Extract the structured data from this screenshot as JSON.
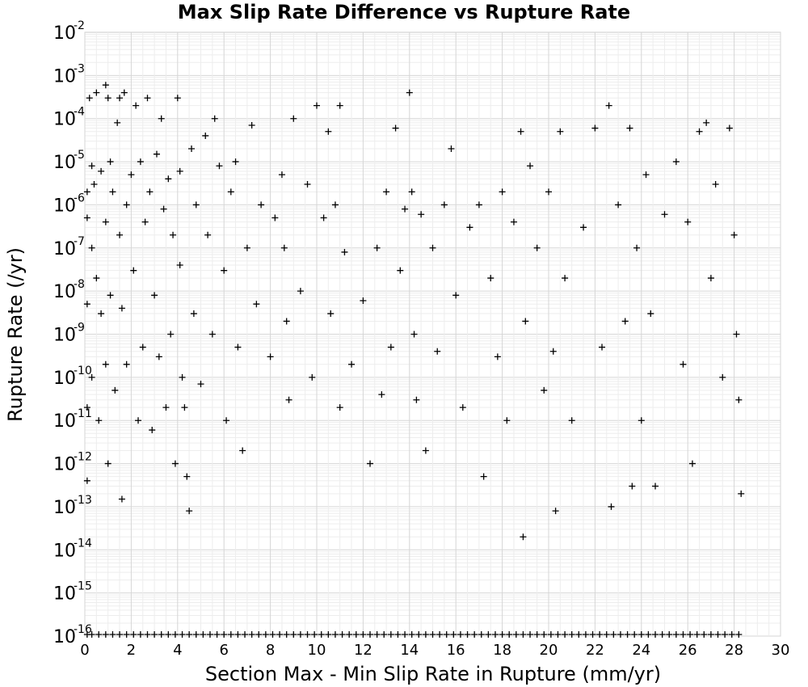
{
  "chart_data": {
    "type": "scatter",
    "title": "Max Slip Rate Difference vs Rupture Rate",
    "xlabel": "Section Max - Min Slip Rate in Rupture (mm/yr)",
    "ylabel": "Rupture Rate (/yr)",
    "xlim": [
      0,
      30
    ],
    "ylim": [
      1e-16,
      0.01
    ],
    "y_scale": "log",
    "grid": true,
    "marker": "+",
    "marker_color": "#000000",
    "x_ticks": [
      "0",
      "2",
      "4",
      "6",
      "8",
      "10",
      "12",
      "14",
      "16",
      "18",
      "20",
      "22",
      "24",
      "26",
      "28",
      "30"
    ],
    "y_ticks": [
      {
        "base": "10",
        "exp": "-2",
        "value": 0.01
      },
      {
        "base": "10",
        "exp": "-3",
        "value": 0.001
      },
      {
        "base": "10",
        "exp": "-4",
        "value": 0.0001
      },
      {
        "base": "10",
        "exp": "-5",
        "value": 1e-05
      },
      {
        "base": "10",
        "exp": "-6",
        "value": 1e-06
      },
      {
        "base": "10",
        "exp": "-7",
        "value": 1e-07
      },
      {
        "base": "10",
        "exp": "-8",
        "value": 1e-08
      },
      {
        "base": "10",
        "exp": "-9",
        "value": 1e-09
      },
      {
        "base": "10",
        "exp": "-10",
        "value": 1e-10
      },
      {
        "base": "10",
        "exp": "-11",
        "value": 1e-11
      },
      {
        "base": "10",
        "exp": "-12",
        "value": 1e-12
      },
      {
        "base": "10",
        "exp": "-13",
        "value": 1e-13
      },
      {
        "base": "10",
        "exp": "-14",
        "value": 1e-14
      },
      {
        "base": "10",
        "exp": "-15",
        "value": 1e-15
      },
      {
        "base": "10",
        "exp": "-16",
        "value": 1e-16
      }
    ],
    "series": [
      {
        "values": [
          [
            0.1,
            2e-06
          ],
          [
            0.1,
            5e-07
          ],
          [
            0.1,
            5e-09
          ],
          [
            0.1,
            2e-11
          ],
          [
            0.1,
            4e-13
          ],
          [
            0.2,
            0.0003
          ],
          [
            0.3,
            8e-06
          ],
          [
            0.3,
            1e-07
          ],
          [
            0.3,
            1e-10
          ],
          [
            0.4,
            3e-06
          ],
          [
            0.5,
            0.0004
          ],
          [
            0.5,
            2e-08
          ],
          [
            0.6,
            1e-11
          ],
          [
            0.7,
            6e-06
          ],
          [
            0.7,
            3e-09
          ],
          [
            0.9,
            0.0006
          ],
          [
            0.9,
            4e-07
          ],
          [
            0.9,
            2e-10
          ],
          [
            1.0,
            0.0003
          ],
          [
            1.0,
            1e-12
          ],
          [
            1.1,
            1e-05
          ],
          [
            1.1,
            8e-09
          ],
          [
            1.2,
            2e-06
          ],
          [
            1.3,
            5e-11
          ],
          [
            1.4,
            8e-05
          ],
          [
            1.5,
            0.0003
          ],
          [
            1.5,
            2e-07
          ],
          [
            1.6,
            4e-09
          ],
          [
            1.6,
            1.5e-13
          ],
          [
            1.7,
            0.0004
          ],
          [
            1.8,
            1e-06
          ],
          [
            1.8,
            2e-10
          ],
          [
            2.0,
            5e-06
          ],
          [
            2.1,
            3e-08
          ],
          [
            2.2,
            0.0002
          ],
          [
            2.3,
            1e-11
          ],
          [
            2.4,
            1e-05
          ],
          [
            2.5,
            5e-10
          ],
          [
            2.6,
            4e-07
          ],
          [
            2.7,
            0.0003
          ],
          [
            2.8,
            2e-06
          ],
          [
            2.9,
            6e-12
          ],
          [
            3.0,
            8e-09
          ],
          [
            3.1,
            1.5e-05
          ],
          [
            3.2,
            3e-10
          ],
          [
            3.3,
            0.0001
          ],
          [
            3.4,
            8e-07
          ],
          [
            3.5,
            2e-11
          ],
          [
            3.6,
            4e-06
          ],
          [
            3.7,
            1e-09
          ],
          [
            3.8,
            2e-07
          ],
          [
            3.9,
            1e-12
          ],
          [
            4.0,
            0.0003
          ],
          [
            4.1,
            6e-06
          ],
          [
            4.1,
            4e-08
          ],
          [
            4.2,
            1e-10
          ],
          [
            4.3,
            2e-11
          ],
          [
            4.4,
            5e-13
          ],
          [
            4.5,
            8e-14
          ],
          [
            4.6,
            2e-05
          ],
          [
            4.7,
            3e-09
          ],
          [
            4.8,
            1e-06
          ],
          [
            5.0,
            7e-11
          ],
          [
            5.2,
            4e-05
          ],
          [
            5.3,
            2e-07
          ],
          [
            5.5,
            1e-09
          ],
          [
            5.6,
            0.0001
          ],
          [
            5.8,
            8e-06
          ],
          [
            6.0,
            3e-08
          ],
          [
            6.1,
            1e-11
          ],
          [
            6.3,
            2e-06
          ],
          [
            6.5,
            1e-05
          ],
          [
            6.6,
            5e-10
          ],
          [
            6.8,
            2e-12
          ],
          [
            7.0,
            1e-07
          ],
          [
            7.2,
            7e-05
          ],
          [
            7.4,
            5e-09
          ],
          [
            7.6,
            1e-06
          ],
          [
            8.0,
            3e-10
          ],
          [
            8.2,
            5e-07
          ],
          [
            8.5,
            5e-06
          ],
          [
            8.6,
            1e-07
          ],
          [
            8.7,
            2e-09
          ],
          [
            8.8,
            3e-11
          ],
          [
            9.0,
            0.0001
          ],
          [
            9.3,
            1e-08
          ],
          [
            9.6,
            3e-06
          ],
          [
            9.8,
            1e-10
          ],
          [
            10.0,
            0.0002
          ],
          [
            10.3,
            5e-07
          ],
          [
            10.5,
            5e-05
          ],
          [
            10.6,
            3e-09
          ],
          [
            10.8,
            1e-06
          ],
          [
            11.0,
            0.0002
          ],
          [
            11.0,
            2e-11
          ],
          [
            11.2,
            8e-08
          ],
          [
            11.5,
            2e-10
          ],
          [
            12.0,
            6e-09
          ],
          [
            12.3,
            1e-12
          ],
          [
            12.6,
            1e-07
          ],
          [
            12.8,
            4e-11
          ],
          [
            13.0,
            2e-06
          ],
          [
            13.2,
            5e-10
          ],
          [
            13.4,
            6e-05
          ],
          [
            13.6,
            3e-08
          ],
          [
            13.8,
            8e-07
          ],
          [
            14.0,
            0.0004
          ],
          [
            14.1,
            2e-06
          ],
          [
            14.2,
            1e-09
          ],
          [
            14.3,
            3e-11
          ],
          [
            14.5,
            6e-07
          ],
          [
            14.7,
            2e-12
          ],
          [
            15.0,
            1e-07
          ],
          [
            15.2,
            4e-10
          ],
          [
            15.5,
            1e-06
          ],
          [
            15.8,
            2e-05
          ],
          [
            16.0,
            8e-09
          ],
          [
            16.3,
            2e-11
          ],
          [
            16.6,
            3e-07
          ],
          [
            17.0,
            1e-06
          ],
          [
            17.2,
            5e-13
          ],
          [
            17.5,
            2e-08
          ],
          [
            17.8,
            3e-10
          ],
          [
            18.0,
            2e-06
          ],
          [
            18.2,
            1e-11
          ],
          [
            18.5,
            4e-07
          ],
          [
            18.8,
            5e-05
          ],
          [
            18.9,
            2e-14
          ],
          [
            19.0,
            2e-09
          ],
          [
            19.2,
            8e-06
          ],
          [
            19.5,
            1e-07
          ],
          [
            19.8,
            5e-11
          ],
          [
            20.0,
            2e-06
          ],
          [
            20.2,
            4e-10
          ],
          [
            20.3,
            8e-14
          ],
          [
            20.5,
            5e-05
          ],
          [
            20.7,
            2e-08
          ],
          [
            21.0,
            1e-11
          ],
          [
            21.5,
            3e-07
          ],
          [
            22.0,
            6e-05
          ],
          [
            22.3,
            5e-10
          ],
          [
            22.6,
            0.0002
          ],
          [
            22.7,
            1e-13
          ],
          [
            23.0,
            1e-06
          ],
          [
            23.3,
            2e-09
          ],
          [
            23.5,
            6e-05
          ],
          [
            23.6,
            3e-13
          ],
          [
            23.8,
            1e-07
          ],
          [
            24.0,
            1e-11
          ],
          [
            24.2,
            5e-06
          ],
          [
            24.4,
            3e-09
          ],
          [
            24.6,
            3e-13
          ],
          [
            25.0,
            6e-07
          ],
          [
            25.5,
            1e-05
          ],
          [
            25.8,
            2e-10
          ],
          [
            26.0,
            4e-07
          ],
          [
            26.2,
            1e-12
          ],
          [
            26.5,
            5e-05
          ],
          [
            26.8,
            8e-05
          ],
          [
            27.0,
            2e-08
          ],
          [
            27.2,
            3e-06
          ],
          [
            27.5,
            1e-10
          ],
          [
            27.8,
            6e-05
          ],
          [
            28.0,
            2e-07
          ],
          [
            28.1,
            1e-09
          ],
          [
            28.2,
            3e-11
          ],
          [
            28.3,
            2e-13
          ]
        ]
      }
    ],
    "zero_rate_row_x": [
      0.1,
      0.3,
      0.6,
      0.9,
      1.2,
      1.5,
      1.8,
      2.1,
      2.4,
      2.7,
      3.0,
      3.3,
      3.6,
      3.9,
      4.2,
      4.5,
      4.8,
      5.1,
      5.4,
      5.7,
      6.0,
      6.3,
      6.6,
      6.9,
      7.2,
      7.5,
      7.8,
      8.1,
      8.4,
      8.7,
      9.0,
      9.3,
      9.6,
      9.9,
      10.2,
      10.5,
      10.8,
      11.1,
      11.4,
      11.7,
      12.0,
      12.3,
      12.6,
      12.9,
      13.2,
      13.5,
      13.8,
      14.1,
      14.4,
      14.7,
      15.0,
      15.3,
      15.6,
      15.9,
      16.2,
      16.5,
      16.8,
      17.1,
      17.4,
      17.7,
      18.0,
      18.3,
      18.6,
      18.9,
      19.2,
      19.5,
      19.8,
      20.1,
      20.4,
      20.7,
      21.0,
      21.3,
      21.6,
      21.9,
      22.2,
      22.5,
      22.8,
      23.1,
      23.4,
      23.7,
      24.0,
      24.3,
      24.6,
      24.9,
      25.2,
      25.5,
      25.8,
      26.1,
      26.4,
      26.7,
      27.0,
      27.3,
      27.6,
      27.9,
      28.2
    ]
  }
}
